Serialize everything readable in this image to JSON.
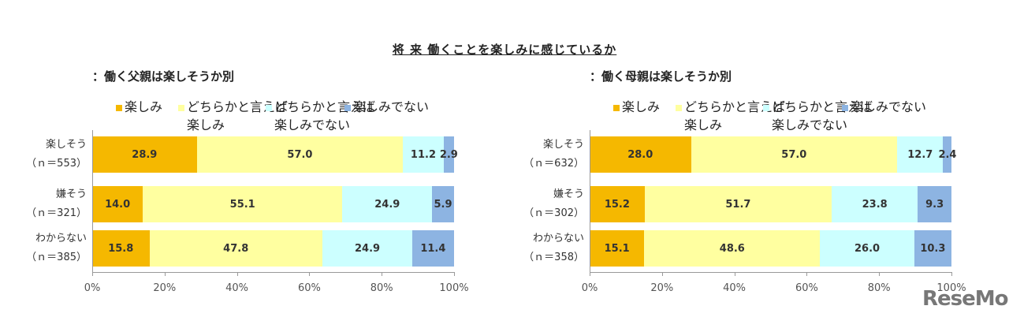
{
  "title": "将 来 働くことを楽しみに感じているか",
  "legend": [
    {
      "label1": "楽しみ",
      "label2": "",
      "color": "#F5B800"
    },
    {
      "label1": "どちらかと言えば",
      "label2": "楽しみ",
      "color": "#FFFFA0"
    },
    {
      "label1": "どちらかと言えば",
      "label2": "楽しみでない",
      "color": "#CCFFFF"
    },
    {
      "label1": "楽しみでない",
      "label2": "",
      "color": "#8DB4E2"
    }
  ],
  "chart_data": [
    {
      "type": "bar",
      "orientation": "horizontal",
      "stacked": true,
      "subtitle": "：働く父親は楽しそうか別",
      "categories": [
        {
          "name": "楽しそう",
          "n": "（ｎ＝553）"
        },
        {
          "name": "嫌そう",
          "n": "（ｎ＝321）"
        },
        {
          "name": "わからない",
          "n": "（ｎ＝385）"
        }
      ],
      "series": [
        {
          "name": "楽しみ",
          "values": [
            28.9,
            14.0,
            15.8
          ]
        },
        {
          "name": "どちらかと言えば楽しみ",
          "values": [
            57.0,
            55.1,
            47.8
          ]
        },
        {
          "name": "どちらかと言えば楽しみでない",
          "values": [
            11.2,
            24.9,
            24.9
          ]
        },
        {
          "name": "楽しみでない",
          "values": [
            2.9,
            5.9,
            11.4
          ]
        }
      ],
      "xticks": [
        "0%",
        "20%",
        "40%",
        "60%",
        "80%",
        "100%"
      ],
      "xlim": [
        0,
        100
      ]
    },
    {
      "type": "bar",
      "orientation": "horizontal",
      "stacked": true,
      "subtitle": "：働く母親は楽しそうか別",
      "categories": [
        {
          "name": "楽しそう",
          "n": "（ｎ＝632）"
        },
        {
          "name": "嫌そう",
          "n": "（ｎ＝302）"
        },
        {
          "name": "わからない",
          "n": "（ｎ＝358）"
        }
      ],
      "series": [
        {
          "name": "楽しみ",
          "values": [
            28.0,
            15.2,
            15.1
          ]
        },
        {
          "name": "どちらかと言えば楽しみ",
          "values": [
            57.0,
            51.7,
            48.6
          ]
        },
        {
          "name": "どちらかと言えば楽しみでない",
          "values": [
            12.7,
            23.8,
            26.0
          ]
        },
        {
          "name": "楽しみでない",
          "values": [
            2.4,
            9.3,
            10.3
          ]
        }
      ],
      "xticks": [
        "0%",
        "20%",
        "40%",
        "60%",
        "80%",
        "100%"
      ],
      "xlim": [
        0,
        100
      ]
    }
  ],
  "logo": "ReseMom"
}
